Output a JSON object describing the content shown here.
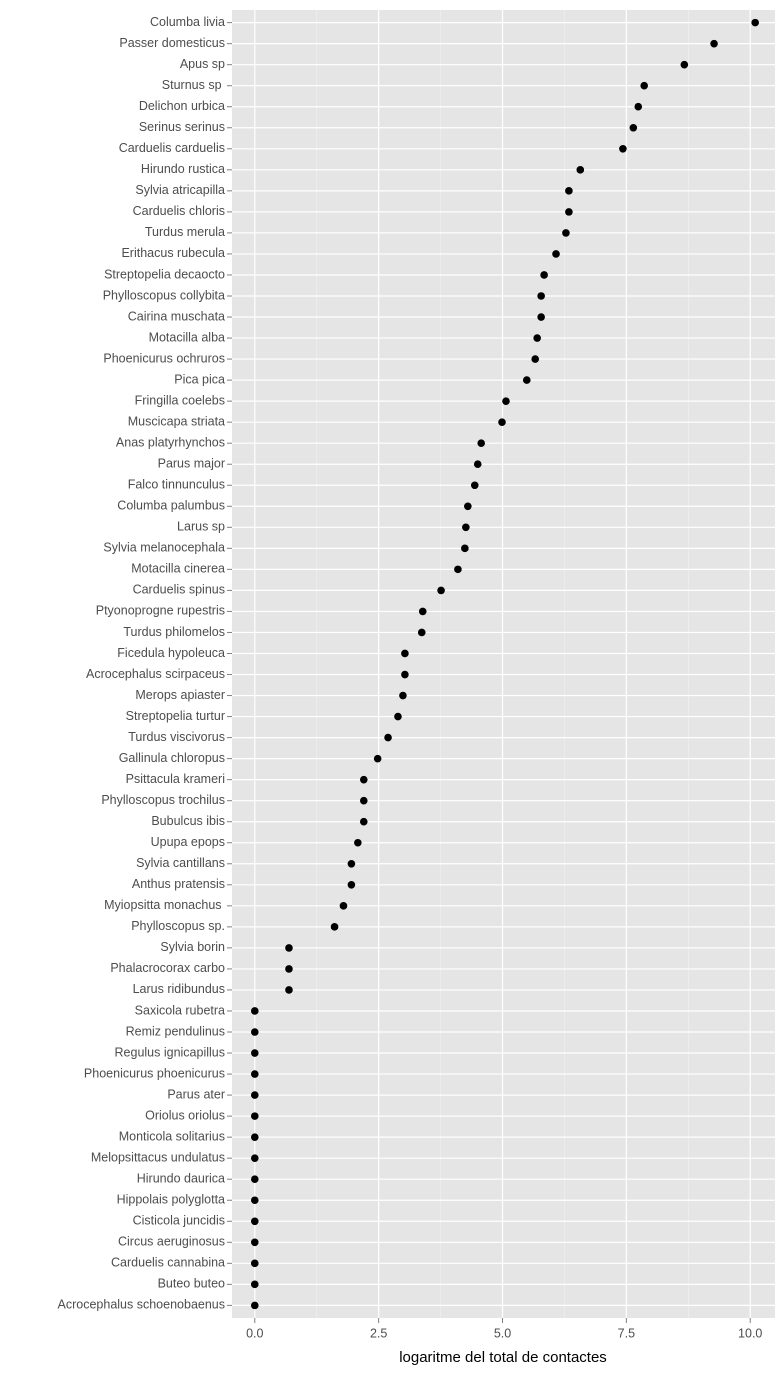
{
  "chart_data": {
    "type": "dot",
    "xlabel": "logaritme del total de contactes",
    "categories": [
      "Columba livia",
      "Passer domesticus",
      "Apus sp",
      "Sturnus sp ",
      "Delichon urbica",
      "Serinus serinus",
      "Carduelis carduelis",
      "Hirundo rustica",
      "Sylvia atricapilla",
      "Carduelis chloris",
      "Turdus merula",
      "Erithacus rubecula",
      "Streptopelia decaocto",
      "Phylloscopus collybita",
      "Cairina muschata",
      "Motacilla alba",
      "Phoenicurus ochruros",
      "Pica pica",
      "Fringilla coelebs",
      "Muscicapa striata",
      "Anas platyrhynchos",
      "Parus major",
      "Falco tinnunculus",
      "Columba palumbus",
      "Larus sp",
      "Sylvia melanocephala",
      "Motacilla cinerea",
      "Carduelis spinus",
      "Ptyonoprogne rupestris",
      "Turdus philomelos",
      "Ficedula hypoleuca",
      "Acrocephalus scirpaceus",
      "Merops apiaster",
      "Streptopelia turtur",
      "Turdus viscivorus",
      "Gallinula chloropus",
      "Psittacula krameri",
      "Phylloscopus trochilus",
      "Bubulcus ibis",
      "Upupa epops",
      "Sylvia cantillans",
      "Anthus pratensis",
      "Myiopsitta monachus ",
      "Phylloscopus sp.",
      "Sylvia borin",
      "Phalacrocorax carbo",
      "Larus ridibundus",
      "Saxicola rubetra",
      "Remiz pendulinus",
      "Regulus ignicapillus",
      "Phoenicurus phoenicurus",
      "Parus ater",
      "Oriolus oriolus",
      "Monticola solitarius",
      "Melopsittacus undulatus",
      "Hirundo daurica",
      "Hippolais polyglotta",
      "Cisticola juncidis",
      "Circus aeruginosus",
      "Carduelis cannabina",
      "Buteo buteo",
      "Acrocephalus schoenobaenus"
    ],
    "values": [
      10.1,
      9.27,
      8.67,
      7.86,
      7.74,
      7.64,
      7.43,
      6.57,
      6.34,
      6.34,
      6.28,
      6.08,
      5.84,
      5.78,
      5.78,
      5.7,
      5.66,
      5.49,
      5.07,
      4.99,
      4.57,
      4.5,
      4.44,
      4.3,
      4.26,
      4.24,
      4.1,
      3.76,
      3.39,
      3.37,
      3.03,
      3.03,
      2.99,
      2.89,
      2.69,
      2.48,
      2.2,
      2.2,
      2.2,
      2.08,
      1.95,
      1.95,
      1.79,
      1.61,
      0.69,
      0.69,
      0.69,
      0,
      0,
      0,
      0,
      0,
      0,
      0,
      0,
      0,
      0,
      0,
      0,
      0,
      0,
      0
    ],
    "color": "#000000",
    "xlim": [
      -0.46,
      10.5
    ],
    "xticks": [
      {
        "value": 0,
        "label": "0.0"
      },
      2.5,
      {
        "value": 5,
        "label": "5.0"
      },
      7.5,
      {
        "value": 10,
        "label": "10.0"
      }
    ],
    "grid": true
  }
}
